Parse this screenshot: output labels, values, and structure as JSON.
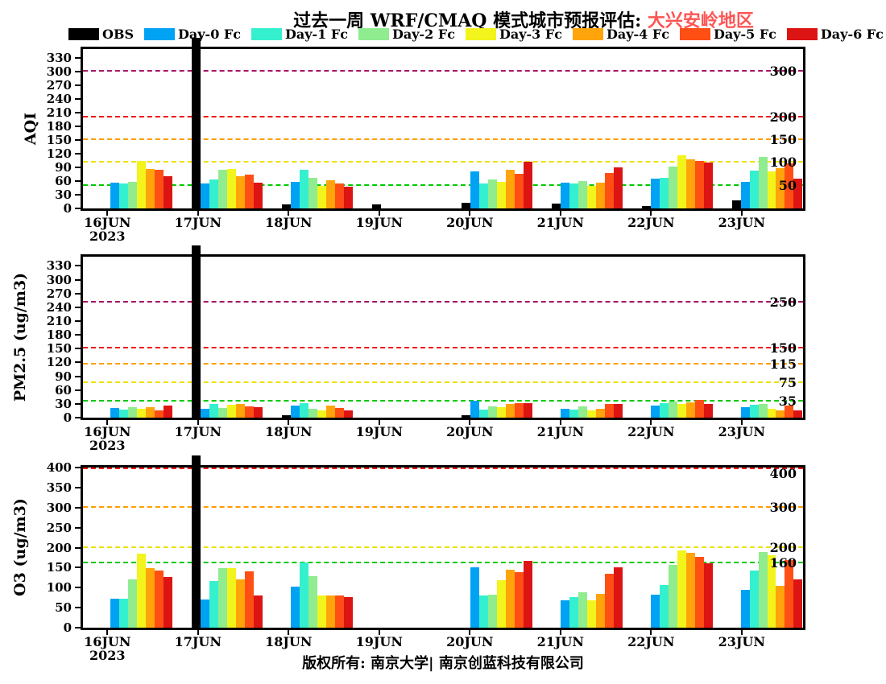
{
  "title": {
    "prefix": "过去一周 WRF/CMAQ 模式城市预报评估: ",
    "region": "大兴安岭地区",
    "region_color": "#FF5454"
  },
  "footer": "版权所有: 南京大学| 南京创蓝科技有限公司",
  "x_axis_year": "2023",
  "legend": [
    {
      "key": "obs",
      "label": "OBS",
      "color": "#000000"
    },
    {
      "key": "day0",
      "label": "Day-0 Fc",
      "color": "#00A2F3"
    },
    {
      "key": "day1",
      "label": "Day-1 Fc",
      "color": "#35F0CE"
    },
    {
      "key": "day2",
      "label": "Day-2 Fc",
      "color": "#8FEC8F"
    },
    {
      "key": "day3",
      "label": "Day-3 Fc",
      "color": "#F2F41C"
    },
    {
      "key": "day4",
      "label": "Day-4 Fc",
      "color": "#FFA40A"
    },
    {
      "key": "day5",
      "label": "Day-5 Fc",
      "color": "#FF4F14"
    },
    {
      "key": "day6",
      "label": "Day-6 Fc",
      "color": "#DC1414"
    }
  ],
  "chart_data": [
    {
      "type": "bar",
      "ylabel": "AQI",
      "ylim": [
        0,
        350
      ],
      "yticks": [
        0,
        30,
        60,
        90,
        120,
        150,
        180,
        210,
        240,
        270,
        300,
        330
      ],
      "grid": "dashed-guidelines",
      "legend_position": "top",
      "guidelines": [
        {
          "value": 50,
          "color": "#00C800",
          "label": "50"
        },
        {
          "value": 100,
          "color": "#EDE100",
          "label": "100"
        },
        {
          "value": 150,
          "color": "#FF9E00",
          "label": "150"
        },
        {
          "value": 200,
          "color": "#F01414",
          "label": "200"
        },
        {
          "value": 300,
          "color": "#A51566",
          "label": "300"
        }
      ],
      "categories": [
        "16JUN",
        "17JUN",
        "18JUN",
        "19JUN",
        "20JUN",
        "21JUN",
        "22JUN",
        "23JUN"
      ],
      "series": [
        {
          "key": "obs",
          "name": "OBS",
          "values": [
            null,
            375,
            8,
            8,
            12,
            10,
            6,
            18
          ]
        },
        {
          "key": "day0",
          "name": "Day-0 Fc",
          "values": [
            56,
            55,
            58,
            null,
            82,
            56,
            65,
            58
          ]
        },
        {
          "key": "day1",
          "name": "Day-1 Fc",
          "values": [
            55,
            63,
            84,
            null,
            54,
            54,
            68,
            83
          ]
        },
        {
          "key": "day2",
          "name": "Day-2 Fc",
          "values": [
            59,
            85,
            68,
            null,
            63,
            60,
            92,
            113
          ]
        },
        {
          "key": "day3",
          "name": "Day-3 Fc",
          "values": [
            105,
            87,
            50,
            null,
            58,
            49,
            117,
            82
          ]
        },
        {
          "key": "day4",
          "name": "Day-4 Fc",
          "values": [
            86,
            70,
            62,
            null,
            85,
            56,
            108,
            88
          ]
        },
        {
          "key": "day5",
          "name": "Day-5 Fc",
          "values": [
            84,
            75,
            55,
            null,
            76,
            78,
            105,
            99
          ]
        },
        {
          "key": "day6",
          "name": "Day-6 Fc",
          "values": [
            71,
            57,
            48,
            null,
            102,
            90,
            100,
            66
          ]
        }
      ]
    },
    {
      "type": "bar",
      "ylabel": "PM2.5 (ug/m3)",
      "ylim": [
        0,
        350
      ],
      "yticks": [
        0,
        30,
        60,
        90,
        120,
        150,
        180,
        210,
        240,
        270,
        300,
        330
      ],
      "grid": "dashed-guidelines",
      "legend_position": "top",
      "guidelines": [
        {
          "value": 35,
          "color": "#00C800",
          "label": "35"
        },
        {
          "value": 75,
          "color": "#EDE100",
          "label": "75"
        },
        {
          "value": 115,
          "color": "#FF9E00",
          "label": "115"
        },
        {
          "value": 150,
          "color": "#F01414",
          "label": "150"
        },
        {
          "value": 250,
          "color": "#A51566",
          "label": "250"
        }
      ],
      "categories": [
        "16JUN",
        "17JUN",
        "18JUN",
        "19JUN",
        "20JUN",
        "21JUN",
        "22JUN",
        "23JUN"
      ],
      "series": [
        {
          "key": "obs",
          "name": "OBS",
          "values": [
            null,
            375,
            5,
            null,
            6,
            null,
            null,
            null
          ]
        },
        {
          "key": "day0",
          "name": "Day-0 Fc",
          "values": [
            21,
            19,
            27,
            null,
            36,
            20,
            26,
            23
          ]
        },
        {
          "key": "day1",
          "name": "Day-1 Fc",
          "values": [
            18,
            30,
            31,
            null,
            18,
            18,
            31,
            28
          ]
        },
        {
          "key": "day2",
          "name": "Day-2 Fc",
          "values": [
            23,
            21,
            19,
            null,
            25,
            25,
            35,
            29
          ]
        },
        {
          "key": "day3",
          "name": "Day-3 Fc",
          "values": [
            20,
            28,
            16,
            null,
            23,
            16,
            29,
            20
          ]
        },
        {
          "key": "day4",
          "name": "Day-4 Fc",
          "values": [
            22,
            30,
            27,
            null,
            29,
            19,
            33,
            16
          ]
        },
        {
          "key": "day5",
          "name": "Day-5 Fc",
          "values": [
            15,
            24,
            21,
            null,
            31,
            30,
            39,
            26
          ]
        },
        {
          "key": "day6",
          "name": "Day-6 Fc",
          "values": [
            26,
            22,
            16,
            null,
            32,
            30,
            30,
            15
          ]
        }
      ]
    },
    {
      "type": "bar",
      "ylabel": "O3 (ug/m3)",
      "ylim": [
        0,
        400
      ],
      "yticks": [
        0,
        50,
        100,
        150,
        200,
        250,
        300,
        350,
        400
      ],
      "grid": "dashed-guidelines",
      "legend_position": "top",
      "guidelines": [
        {
          "value": 160,
          "color": "#00C800",
          "label": "160"
        },
        {
          "value": 200,
          "color": "#EDE100",
          "label": "200"
        },
        {
          "value": 300,
          "color": "#FF9E00",
          "label": "300"
        },
        {
          "value": 400,
          "color": "#F01414",
          "label": "400"
        }
      ],
      "categories": [
        "16JUN",
        "17JUN",
        "18JUN",
        "19JUN",
        "20JUN",
        "21JUN",
        "22JUN",
        "23JUN"
      ],
      "series": [
        {
          "key": "obs",
          "name": "OBS",
          "values": [
            null,
            430,
            null,
            null,
            null,
            null,
            null,
            null
          ]
        },
        {
          "key": "day0",
          "name": "Day-0 Fc",
          "values": [
            73,
            71,
            103,
            null,
            150,
            69,
            83,
            95
          ]
        },
        {
          "key": "day1",
          "name": "Day-1 Fc",
          "values": [
            73,
            116,
            162,
            null,
            81,
            76,
            107,
            143
          ]
        },
        {
          "key": "day2",
          "name": "Day-2 Fc",
          "values": [
            120,
            149,
            128,
            null,
            83,
            89,
            156,
            188
          ]
        },
        {
          "key": "day3",
          "name": "Day-3 Fc",
          "values": [
            185,
            149,
            80,
            null,
            119,
            68,
            192,
            180
          ]
        },
        {
          "key": "day4",
          "name": "Day-4 Fc",
          "values": [
            149,
            120,
            80,
            null,
            145,
            85,
            187,
            104
          ]
        },
        {
          "key": "day5",
          "name": "Day-5 Fc",
          "values": [
            143,
            141,
            81,
            null,
            139,
            135,
            176,
            169
          ]
        },
        {
          "key": "day6",
          "name": "Day-6 Fc",
          "values": [
            127,
            80,
            76,
            null,
            166,
            151,
            161,
            120
          ]
        }
      ]
    }
  ]
}
